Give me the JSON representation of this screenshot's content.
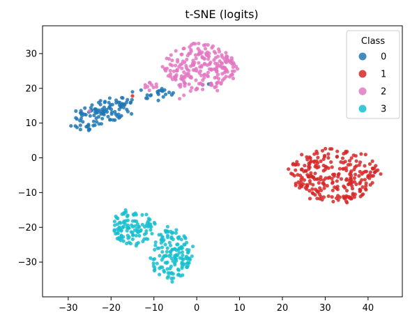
{
  "chart_data": {
    "type": "scatter",
    "title": "t-SNE (logits)",
    "xlabel": "",
    "ylabel": "",
    "xlim": [
      -36,
      48
    ],
    "ylim": [
      -40,
      38
    ],
    "xticks": [
      -30,
      -20,
      -10,
      0,
      10,
      20,
      30,
      40
    ],
    "yticks": [
      -30,
      -20,
      -10,
      0,
      10,
      20,
      30
    ],
    "grid": false,
    "legend": {
      "title": "Class",
      "placement": "top-right"
    },
    "series": [
      {
        "name": "0",
        "color": "#1f77b4",
        "clusters": [
          {
            "cx": -22,
            "cy": 13,
            "rx": 9,
            "ry": 3.5,
            "angle": 25,
            "n": 110
          },
          {
            "cx": -9,
            "cy": 18.5,
            "rx": 4,
            "ry": 1.2,
            "angle": 10,
            "n": 20
          },
          {
            "cx": 2,
            "cy": 22,
            "rx": 2,
            "ry": 1,
            "angle": 0,
            "n": 4
          }
        ],
        "extra": [
          [
            -25,
            8.2
          ],
          [
            -25.2,
            7.9
          ],
          [
            -15,
            19
          ],
          [
            -13,
            19.5
          ]
        ]
      },
      {
        "name": "1",
        "color": "#d62728",
        "clusters": [
          {
            "cx": 32,
            "cy": -5,
            "rx": 11,
            "ry": 8,
            "angle": 0,
            "n": 260
          }
        ],
        "extra": [
          [
            -15,
            17.8
          ]
        ]
      },
      {
        "name": "2",
        "color": "#e377c2",
        "clusters": [
          {
            "cx": 1,
            "cy": 26,
            "rx": 9,
            "ry": 7,
            "angle": 0,
            "n": 230
          },
          {
            "cx": -11,
            "cy": 20.5,
            "rx": 3,
            "ry": 1.2,
            "angle": 10,
            "n": 10
          }
        ],
        "extra": [
          [
            -25,
            13.5
          ],
          [
            -3,
            18
          ],
          [
            -4,
            17
          ]
        ]
      },
      {
        "name": "3",
        "color": "#17becf",
        "clusters": [
          {
            "cx": -15,
            "cy": -20,
            "rx": 5.5,
            "ry": 5,
            "angle": 0,
            "n": 110
          },
          {
            "cx": -6,
            "cy": -28,
            "rx": 5,
            "ry": 8,
            "angle": 0,
            "n": 150
          }
        ],
        "extra": []
      }
    ]
  }
}
